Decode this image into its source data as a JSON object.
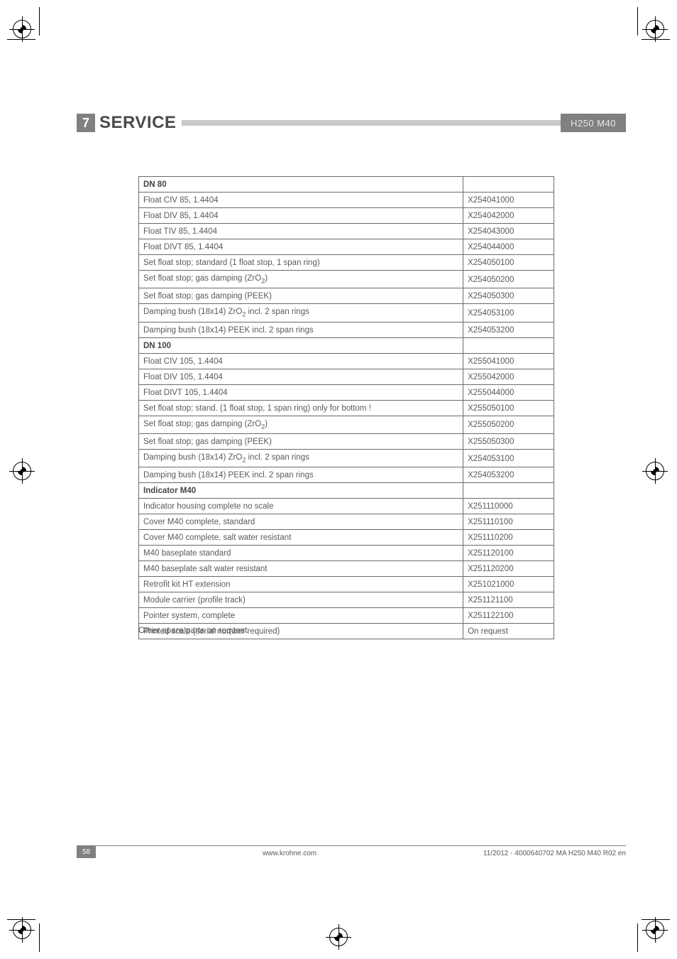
{
  "header": {
    "section_number": "7",
    "title": "SERVICE",
    "badge": "H250 M40"
  },
  "table": {
    "sections": [
      {
        "header": "DN 80",
        "rows": [
          {
            "label": "Float CIV 85, 1.4404",
            "code": "X254041000"
          },
          {
            "label": "Float DIV 85, 1.4404",
            "code": "X254042000"
          },
          {
            "label": "Float TIV 85, 1.4404",
            "code": "X254043000"
          },
          {
            "label": "Float DIVT 85, 1.4404",
            "code": "X254044000"
          },
          {
            "label": "Set float stop; standard (1 float stop, 1 span ring)",
            "code": "X254050100"
          },
          {
            "label": "Set float stop; gas damping (ZrO<sub>2</sub>)",
            "code": "X254050200"
          },
          {
            "label": "Set float stop; gas damping (PEEK)",
            "code": "X254050300"
          },
          {
            "label": "Damping bush (18x14) ZrO<sub>2</sub> incl. 2 span rings",
            "code": "X254053100"
          },
          {
            "label": "Damping bush (18x14) PEEK incl. 2 span rings",
            "code": "X254053200"
          }
        ]
      },
      {
        "header": "DN 100",
        "rows": [
          {
            "label": "Float CIV 105, 1.4404",
            "code": "X255041000"
          },
          {
            "label": "Float DIV 105, 1.4404",
            "code": "X255042000"
          },
          {
            "label": "Float DIVT 105, 1.4404",
            "code": "X255044000"
          },
          {
            "label": "Set float stop; stand. (1 float stop, 1 span ring) only for bottom !",
            "code": "X255050100"
          },
          {
            "label": "Set float stop; gas damping (ZrO<sub>2</sub>)",
            "code": "X255050200"
          },
          {
            "label": "Set float stop; gas damping (PEEK)",
            "code": "X255050300"
          },
          {
            "label": "Damping bush (18x14) ZrO<sub>2</sub> incl. 2 span rings",
            "code": "X254053100"
          },
          {
            "label": "Damping bush (18x14) PEEK incl. 2 span rings",
            "code": "X254053200"
          }
        ]
      },
      {
        "header": "Indicator M40",
        "rows": [
          {
            "label": "Indicator housing complete no scale",
            "code": "X251110000"
          },
          {
            "label": "Cover M40 complete, standard",
            "code": "X251110100"
          },
          {
            "label": "Cover M40 complete, salt water resistant",
            "code": "X251110200"
          },
          {
            "label": "M40 baseplate standard",
            "code": "X251120100"
          },
          {
            "label": "M40 baseplate salt water resistant",
            "code": "X251120200"
          },
          {
            "label": "Retrofit kit HT extension",
            "code": "X251021000"
          },
          {
            "label": "Module carrier (profile track)",
            "code": "X251121100"
          },
          {
            "label": "Pointer system, complete",
            "code": "X251122100"
          },
          {
            "label": "Printed scale (serial number required)",
            "code": "On request"
          }
        ]
      }
    ]
  },
  "note": "Other spare parts on request",
  "footer": {
    "page": "58",
    "center": "www.krohne.com",
    "right": "11/2012 - 4000640702 MA H250 M40 R02 en"
  }
}
